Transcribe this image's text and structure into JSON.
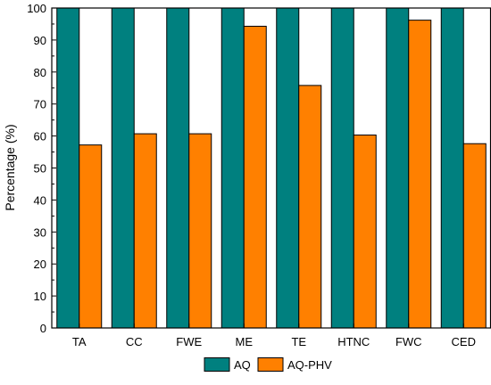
{
  "chart_data": {
    "type": "bar",
    "title": "",
    "xlabel": "",
    "ylabel": "Percentage (%)",
    "categories": [
      "TA",
      "CC",
      "FWE",
      "ME",
      "TE",
      "HTNC",
      "FWC",
      "CED"
    ],
    "series": [
      {
        "name": "AQ",
        "color": "#00807f",
        "values": [
          100,
          100,
          100,
          100,
          100,
          100,
          100,
          100
        ]
      },
      {
        "name": "AQ-PHV",
        "color": "#ff8000",
        "values": [
          57.2,
          60.7,
          60.7,
          94.3,
          75.8,
          60.3,
          96.2,
          57.6
        ]
      }
    ],
    "ylim": [
      0,
      100
    ],
    "yticks": [
      0,
      10,
      20,
      30,
      40,
      50,
      60,
      70,
      80,
      90,
      100
    ],
    "grid": false,
    "legend_position": "bottom-center"
  }
}
